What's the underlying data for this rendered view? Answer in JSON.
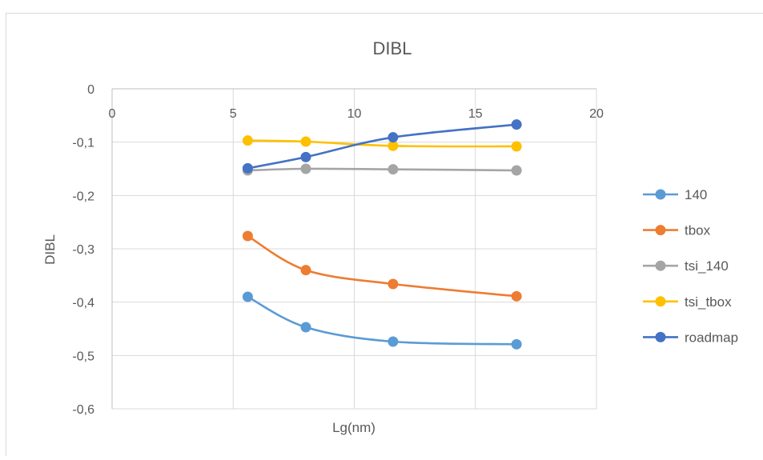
{
  "chart_data": {
    "type": "line",
    "title": "DIBL",
    "xlabel": "Lg(nm)",
    "ylabel": "DIBL",
    "xlim": [
      0,
      20
    ],
    "ylim": [
      -0.6,
      0
    ],
    "xticks": [
      0,
      5,
      10,
      15,
      20
    ],
    "xtick_labels": [
      "0",
      "5",
      "10",
      "15",
      "20"
    ],
    "yticks": [
      0,
      -0.1,
      -0.2,
      -0.3,
      -0.4,
      -0.5,
      -0.6
    ],
    "ytick_labels": [
      "0",
      "-0,1",
      "-0,2",
      "-0,3",
      "-0,4",
      "-0,5",
      "-0,6"
    ],
    "grid": true,
    "smooth": true,
    "legend_position": "right",
    "series": [
      {
        "name": "140",
        "color": "#5b9bd5",
        "x": [
          5.6,
          8,
          11.6,
          16.7
        ],
        "y": [
          -0.39,
          -0.447,
          -0.474,
          -0.479
        ]
      },
      {
        "name": "tbox",
        "color": "#ed7d31",
        "x": [
          5.6,
          8,
          11.6,
          16.7
        ],
        "y": [
          -0.276,
          -0.34,
          -0.366,
          -0.389
        ]
      },
      {
        "name": "tsi_140",
        "color": "#a5a5a5",
        "x": [
          5.6,
          8,
          11.6,
          16.7
        ],
        "y": [
          -0.153,
          -0.15,
          -0.151,
          -0.153
        ]
      },
      {
        "name": "tsi_tbox",
        "color": "#ffc000",
        "x": [
          5.6,
          8,
          11.6,
          16.7
        ],
        "y": [
          -0.097,
          -0.099,
          -0.107,
          -0.108
        ]
      },
      {
        "name": "roadmap",
        "color": "#4472c4",
        "x": [
          5.6,
          8,
          11.6,
          16.7
        ],
        "y": [
          -0.149,
          -0.128,
          -0.091,
          -0.067
        ]
      }
    ]
  }
}
